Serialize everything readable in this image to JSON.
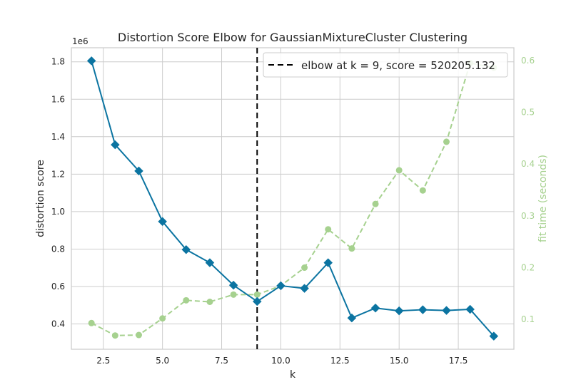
{
  "chart_data": {
    "type": "line",
    "title": "Distortion Score Elbow for GaussianMixtureCluster Clustering",
    "xlabel": "k",
    "ylabel": "distortion score",
    "y2label": "fit time (seconds)",
    "y_offset_label": "1e6",
    "xlim": [
      1.15,
      19.85
    ],
    "ylim": [
      265000,
      1875000
    ],
    "y2lim": [
      0.0425,
      0.6245
    ],
    "x_ticks": [
      2.5,
      5.0,
      7.5,
      10.0,
      12.5,
      15.0,
      17.5
    ],
    "x_tick_labels": [
      "2.5",
      "5.0",
      "7.5",
      "10.0",
      "12.5",
      "15.0",
      "17.5"
    ],
    "y_ticks": [
      400000,
      600000,
      800000,
      1000000,
      1200000,
      1400000,
      1600000,
      1800000
    ],
    "y_tick_labels": [
      "0.4",
      "0.6",
      "0.8",
      "1.0",
      "1.2",
      "1.4",
      "1.6",
      "1.8"
    ],
    "y2_ticks": [
      0.1,
      0.2,
      0.3,
      0.4,
      0.5,
      0.6
    ],
    "y2_tick_labels": [
      "0.1",
      "0.2",
      "0.3",
      "0.4",
      "0.5",
      "0.6"
    ],
    "grid": true,
    "legend_position": "top-right",
    "series": [
      {
        "axis": "left",
        "color": "#0b74a1",
        "marker": "diamond",
        "linestyle": "solid",
        "x": [
          2,
          3,
          4,
          5,
          6,
          7,
          8,
          9,
          10,
          11,
          12,
          13,
          14,
          15,
          16,
          17,
          18,
          19
        ],
        "values": [
          1805000,
          1357000,
          1217000,
          947000,
          797000,
          727000,
          607000,
          520205,
          604000,
          590000,
          727000,
          432000,
          485000,
          470000,
          476000,
          472000,
          478000,
          335000
        ]
      },
      {
        "axis": "right",
        "color": "#a6d18f",
        "marker": "circle",
        "linestyle": "dashed",
        "x": [
          2,
          3,
          4,
          5,
          6,
          7,
          8,
          9,
          10,
          11,
          12,
          13,
          14,
          15,
          16,
          17,
          18,
          19
        ],
        "values": [
          0.093,
          0.069,
          0.07,
          0.102,
          0.137,
          0.134,
          0.148,
          0.148,
          0.165,
          0.2,
          0.274,
          0.237,
          0.323,
          0.388,
          0.349,
          0.443,
          0.595,
          0.586
        ]
      }
    ],
    "elbow": {
      "x": 9,
      "legend_label": "elbow at k = 9, score = 520205.132"
    }
  },
  "colors": {
    "grid": "#cccccc",
    "spine": "#cccccc",
    "text": "#262626",
    "elbow_line": "#000000"
  }
}
